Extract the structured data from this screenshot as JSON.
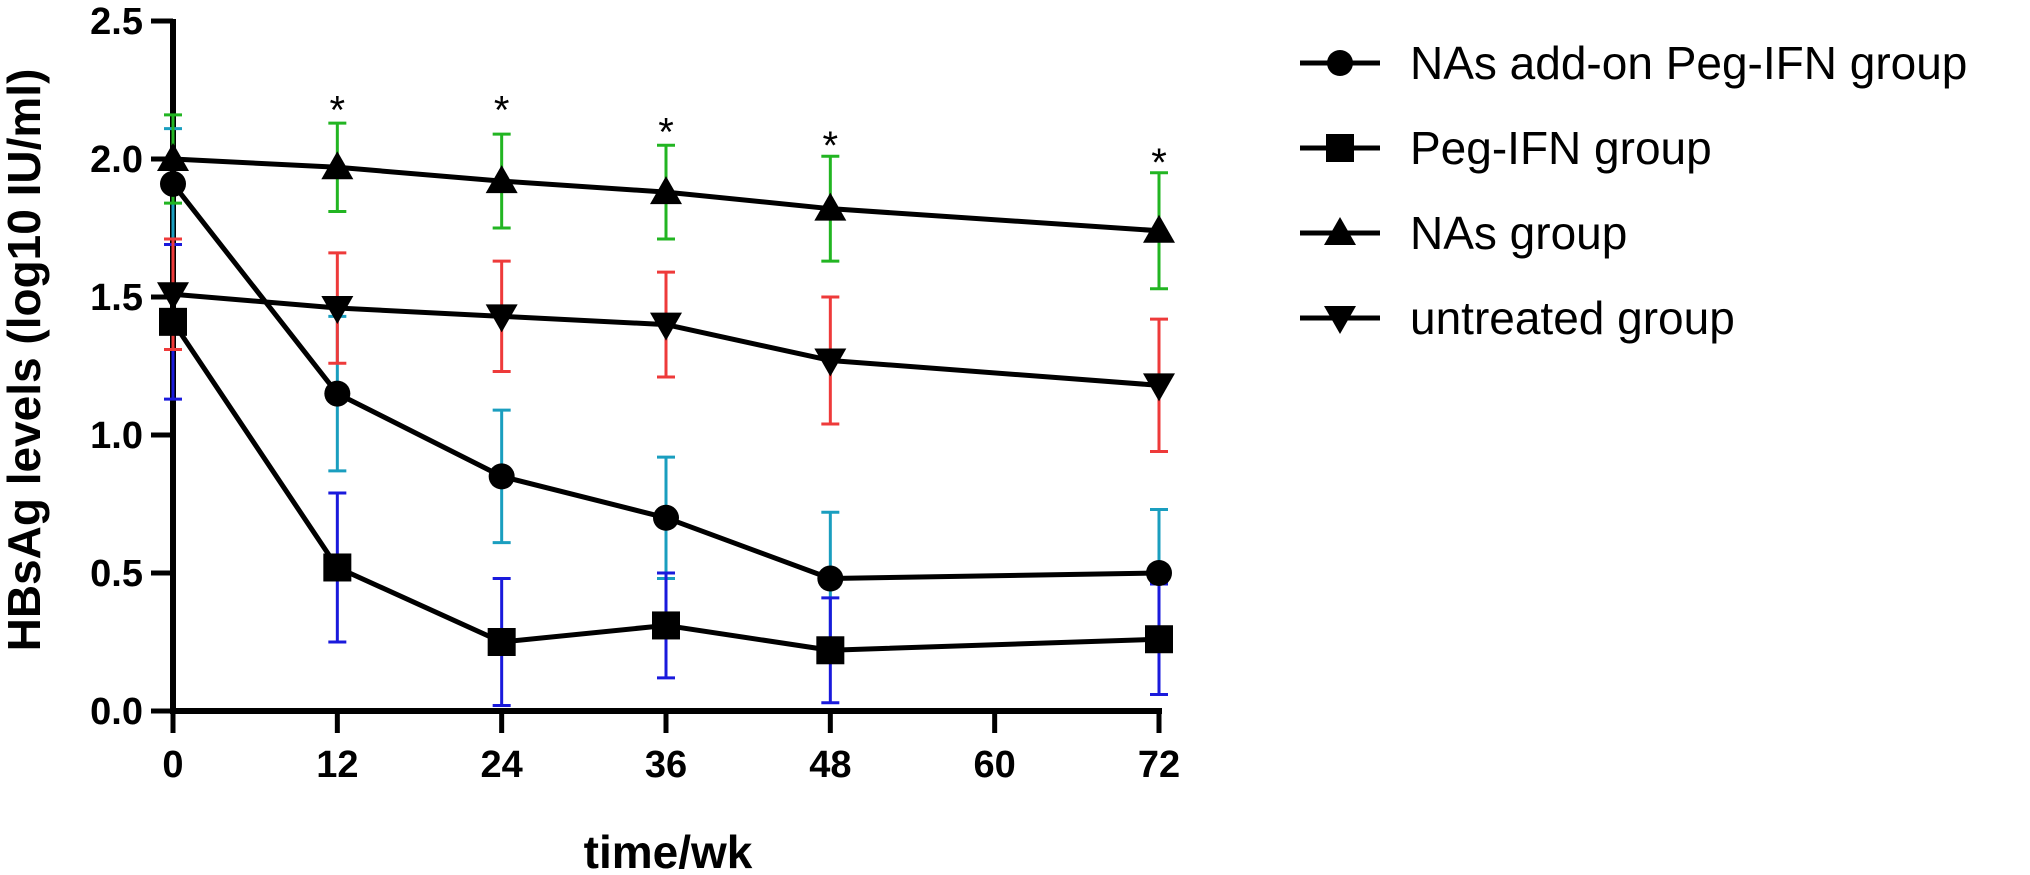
{
  "chart_data": {
    "type": "line",
    "title": "",
    "xlabel": "time/wk",
    "ylabel": "HBsAg levels (log10 IU/ml)",
    "xlim": [
      0,
      72
    ],
    "ylim": [
      0,
      2.5
    ],
    "x_ticks": [
      0,
      12,
      24,
      36,
      48,
      60,
      72
    ],
    "y_ticks": [
      0.0,
      0.5,
      1.0,
      1.5,
      2.0,
      2.5
    ],
    "y_tick_labels": [
      "0.0",
      "0.5",
      "1.0",
      "1.5",
      "2.0",
      "2.5"
    ],
    "grid": false,
    "legend_position": "top-right",
    "series": [
      {
        "name": "NAs add-on Peg-IFN group",
        "marker": "circle",
        "error_color": "#1a9ebf",
        "x": [
          0,
          12,
          24,
          36,
          48,
          72
        ],
        "y": [
          1.91,
          1.15,
          0.85,
          0.7,
          0.48,
          0.5
        ],
        "err": [
          0.2,
          0.28,
          0.24,
          0.22,
          0.24,
          0.23
        ]
      },
      {
        "name": "Peg-IFN group",
        "marker": "square",
        "error_color": "#1a1adc",
        "x": [
          0,
          12,
          24,
          36,
          48,
          72
        ],
        "y": [
          1.41,
          0.52,
          0.25,
          0.31,
          0.22,
          0.26
        ],
        "err": [
          0.28,
          0.27,
          0.23,
          0.19,
          0.19,
          0.2
        ]
      },
      {
        "name": "NAs group",
        "marker": "triangle-up",
        "error_color": "#22b522",
        "x": [
          0,
          12,
          24,
          36,
          48,
          72
        ],
        "y": [
          2.0,
          1.97,
          1.92,
          1.88,
          1.82,
          1.74
        ],
        "err": [
          0.16,
          0.16,
          0.17,
          0.17,
          0.19,
          0.21
        ]
      },
      {
        "name": "untreated group",
        "marker": "triangle-down",
        "error_color": "#ee3a3a",
        "x": [
          0,
          12,
          24,
          36,
          48,
          72
        ],
        "y": [
          1.51,
          1.46,
          1.43,
          1.4,
          1.27,
          1.18
        ],
        "err": [
          0.2,
          0.2,
          0.2,
          0.19,
          0.23,
          0.24
        ]
      }
    ],
    "annotations": [
      {
        "x": 12,
        "y": 2.18,
        "text": "*"
      },
      {
        "x": 24,
        "y": 2.18,
        "text": "*"
      },
      {
        "x": 36,
        "y": 2.1,
        "text": "*"
      },
      {
        "x": 48,
        "y": 2.05,
        "text": "*"
      },
      {
        "x": 72,
        "y": 1.99,
        "text": "*"
      }
    ]
  }
}
